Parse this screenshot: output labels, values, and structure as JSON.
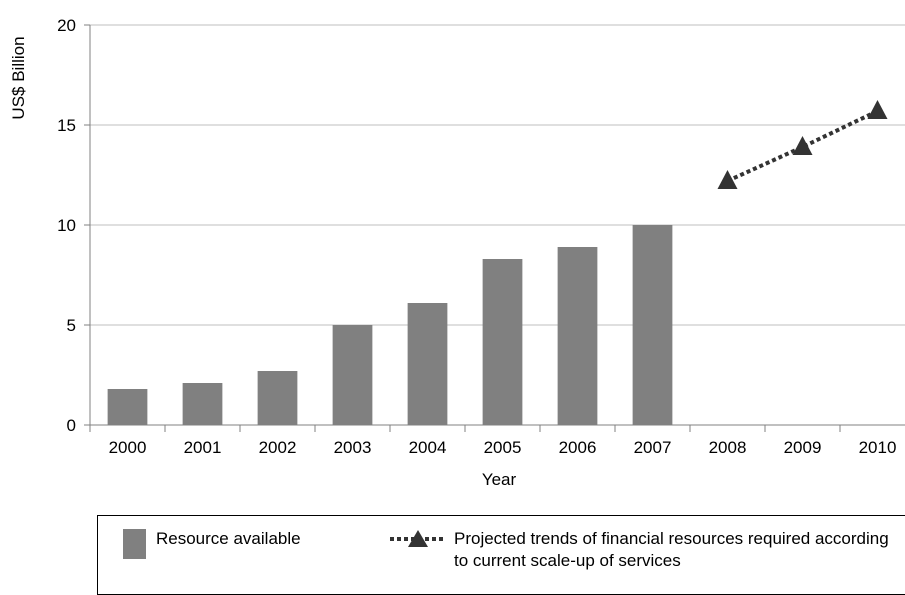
{
  "chart_data": {
    "type": "bar",
    "ylabel": "US$ Billion",
    "xlabel": "Year",
    "ylim": [
      0,
      20
    ],
    "yticks": [
      0,
      5,
      10,
      15,
      20
    ],
    "grid": true,
    "categories": [
      "2000",
      "2001",
      "2002",
      "2003",
      "2004",
      "2005",
      "2006",
      "2007",
      "2008",
      "2009",
      "2010"
    ],
    "series": [
      {
        "name": "Resource available",
        "type": "bar",
        "color": "#808080",
        "values": [
          1.8,
          2.1,
          2.7,
          5.0,
          6.1,
          8.3,
          8.9,
          10.0,
          null,
          null,
          null
        ]
      },
      {
        "name": "Projected trends of financial resources required according to current scale-up of services",
        "type": "line",
        "style": "dotted",
        "marker": "triangle",
        "color": "#333333",
        "values": [
          null,
          null,
          null,
          null,
          null,
          null,
          null,
          null,
          12.2,
          13.9,
          15.7
        ]
      }
    ]
  },
  "legend": {
    "item1": "Resource available",
    "item2": "Projected trends of financial resources required according to current scale-up of services"
  }
}
